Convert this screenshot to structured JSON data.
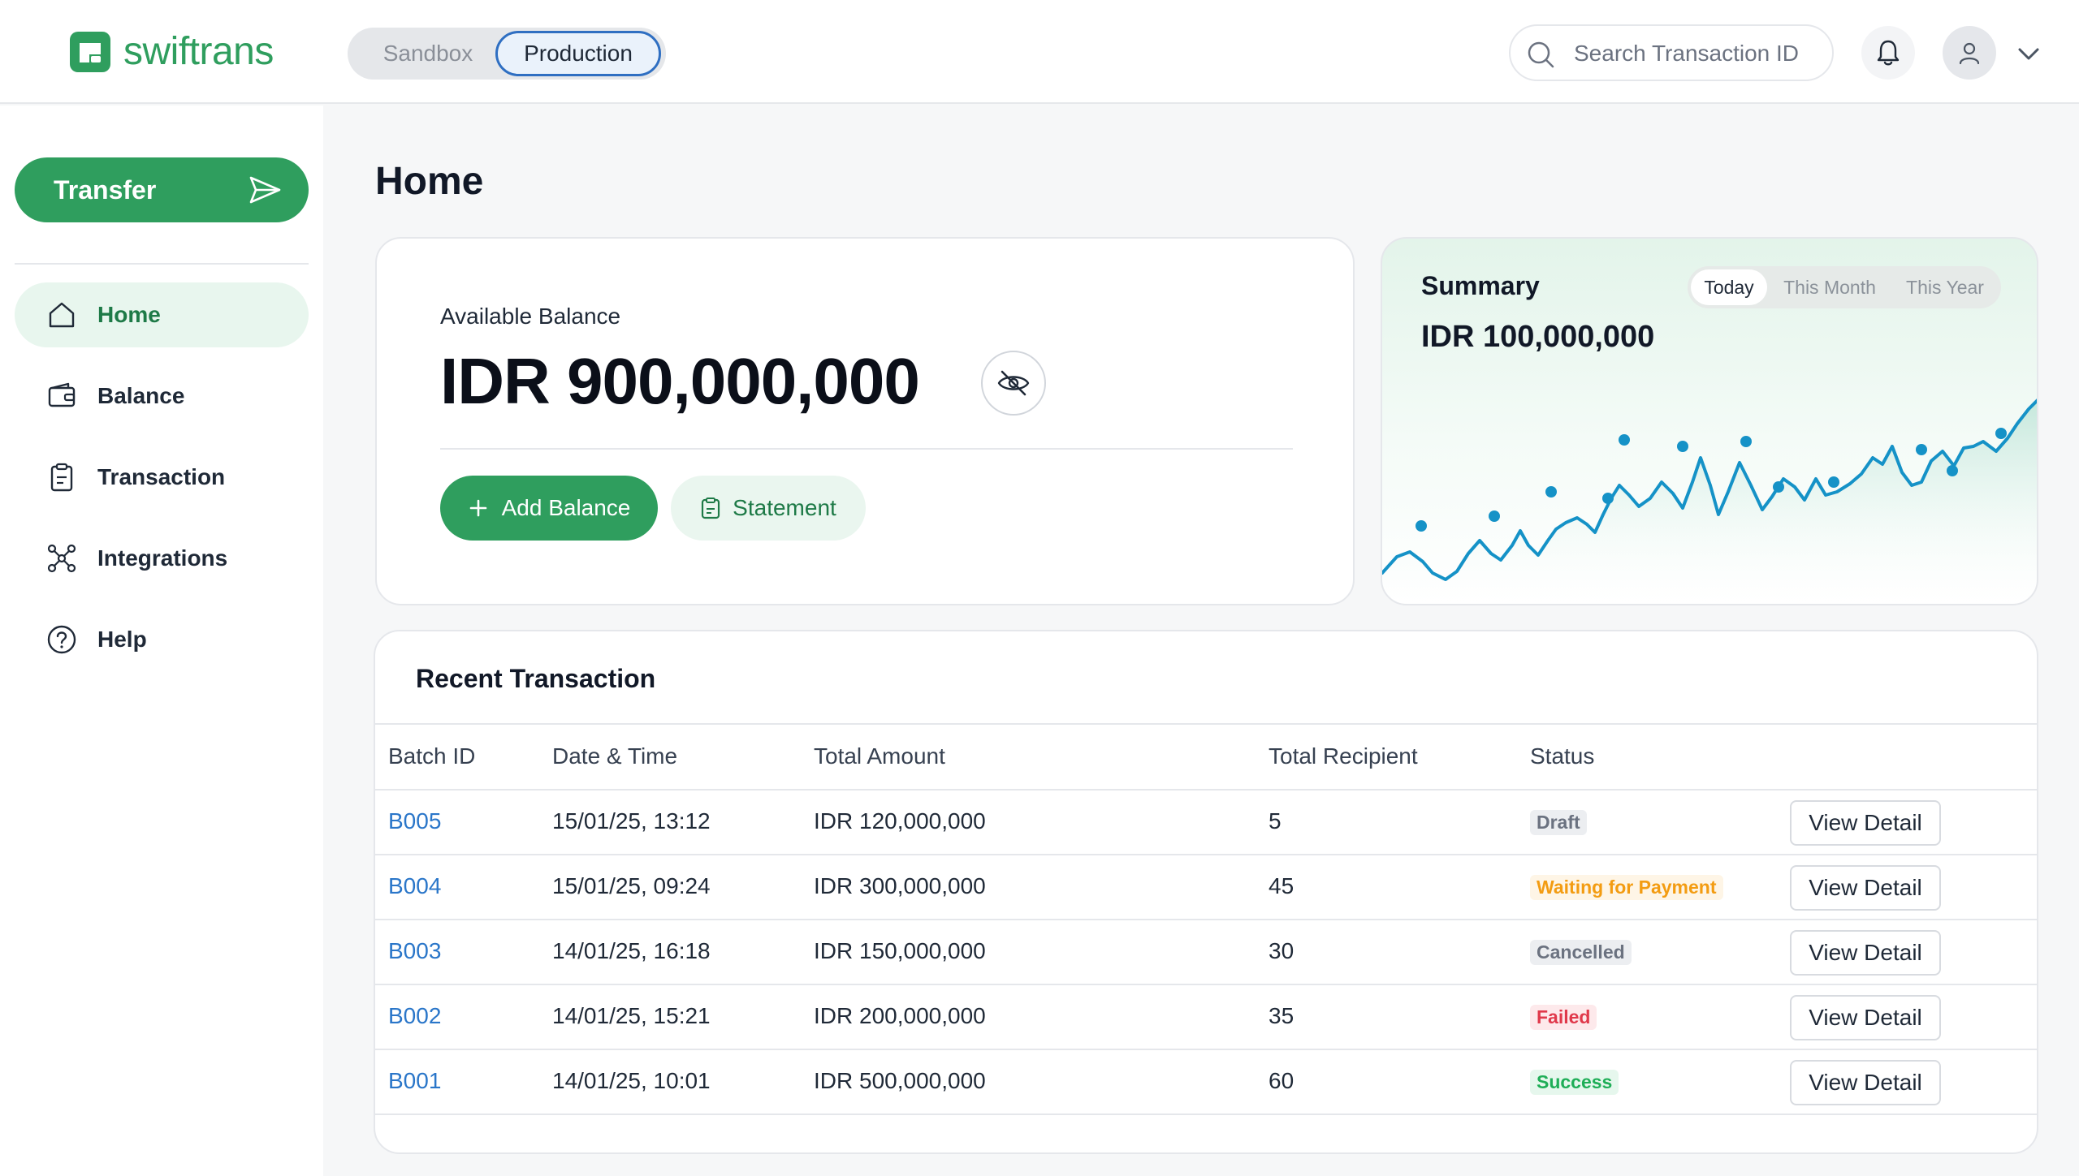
{
  "header": {
    "brand": "swiftrans",
    "env": {
      "sandbox": "Sandbox",
      "production": "Production",
      "selected": "Production"
    },
    "search_placeholder": "Search Transaction ID"
  },
  "sidebar": {
    "transfer_label": "Transfer",
    "items": [
      {
        "label": "Home",
        "icon": "home-icon",
        "active": true
      },
      {
        "label": "Balance",
        "icon": "wallet-icon"
      },
      {
        "label": "Transaction",
        "icon": "clipboard-icon"
      },
      {
        "label": "Integrations",
        "icon": "integrations-icon"
      },
      {
        "label": "Help",
        "icon": "help-icon"
      }
    ]
  },
  "main": {
    "title": "Home",
    "balance": {
      "label": "Available Balance",
      "value": "IDR 900,000,000",
      "add_label": "Add Balance",
      "statement_label": "Statement"
    },
    "summary": {
      "title": "Summary",
      "tabs": [
        "Today",
        "This Month",
        "This Year"
      ],
      "active_tab": "Today",
      "value": "IDR 100,000,000"
    },
    "recent": {
      "title": "Recent Transaction",
      "columns": [
        "Batch ID",
        "Date & Time",
        "Total Amount",
        "Total Recipient",
        "Status"
      ],
      "rows": [
        {
          "batch": "B005",
          "datetime": "15/01/25, 13:12",
          "amount": "IDR 120,000,000",
          "recipients": "5",
          "status": "Draft",
          "action": "View Detail"
        },
        {
          "batch": "B004",
          "datetime": "15/01/25, 09:24",
          "amount": "IDR 300,000,000",
          "recipients": "45",
          "status": "Waiting for Payment",
          "action": "View Detail"
        },
        {
          "batch": "B003",
          "datetime": "14/01/25, 16:18",
          "amount": "IDR 150,000,000",
          "recipients": "30",
          "status": "Cancelled",
          "action": "View Detail"
        },
        {
          "batch": "B002",
          "datetime": "14/01/25, 15:21",
          "amount": "IDR 200,000,000",
          "recipients": "35",
          "status": "Failed",
          "action": "View Detail"
        },
        {
          "batch": "B001",
          "datetime": "14/01/25, 10:01",
          "amount": "IDR 500,000,000",
          "recipients": "60",
          "status": "Success",
          "action": "View Detail"
        }
      ]
    }
  },
  "colors": {
    "brand_green": "#2f9e5e",
    "link_blue": "#2a76c9",
    "chart_line": "#1592c7",
    "status_waiting": "#f39c12",
    "status_failed": "#e0394b",
    "status_success": "#1fae57"
  }
}
